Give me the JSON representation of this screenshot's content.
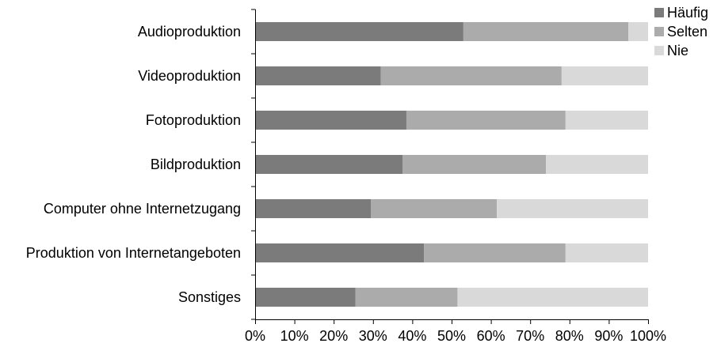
{
  "chart_data": {
    "type": "bar",
    "orientation": "horizontal",
    "stacking": "percent",
    "categories": [
      "Audioproduktion",
      "Videoproduktion",
      "Fotoproduktion",
      "Bildproduktion",
      "Computer ohne Internetzugang",
      "Produktion von Internetangeboten",
      "Sonstiges"
    ],
    "series": [
      {
        "name": "Häufig",
        "color": "#7b7b7b",
        "values": [
          53,
          32,
          38.5,
          37.5,
          29.5,
          43,
          25.5
        ]
      },
      {
        "name": "Selten",
        "color": "#ababab",
        "values": [
          42,
          46,
          40.5,
          36.5,
          32,
          36,
          26
        ]
      },
      {
        "name": "Nie",
        "color": "#d9d9d9",
        "values": [
          5,
          22,
          21,
          26,
          38.5,
          21,
          48.5
        ]
      }
    ],
    "xlim": [
      0,
      100
    ],
    "xticks": [
      "0%",
      "10%",
      "20%",
      "30%",
      "40%",
      "50%",
      "60%",
      "70%",
      "80%",
      "90%",
      "100%"
    ],
    "legend": "top-right",
    "grid": false,
    "title": "",
    "xlabel": "",
    "ylabel": ""
  }
}
